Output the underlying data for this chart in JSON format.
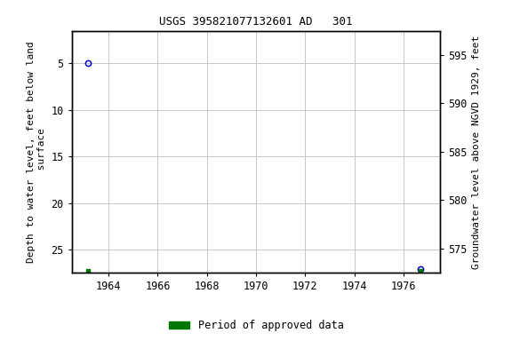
{
  "title": "USGS 395821077132601 AD   301",
  "ylabel_left": "Depth to water level, feet below land\n surface",
  "ylabel_right": "Groundwater level above NGVD 1929, feet",
  "xlim": [
    1962.5,
    1977.5
  ],
  "ylim_left": [
    27.5,
    1.5
  ],
  "ylim_right": [
    572.5,
    597.5
  ],
  "xticks": [
    1964,
    1966,
    1968,
    1970,
    1972,
    1974,
    1976
  ],
  "yticks_left": [
    5,
    10,
    15,
    20,
    25
  ],
  "yticks_right": [
    595,
    590,
    585,
    580,
    575
  ],
  "bg_color": "#ffffff",
  "plot_bg_color": "#ffffff",
  "grid_color": "#c8c8c8",
  "blue_points": [
    {
      "x": 1963.15,
      "y_left": 5.0
    },
    {
      "x": 1976.7,
      "y_left": 27.1
    }
  ],
  "green_points": [
    {
      "x": 1963.15,
      "y_left": 27.3
    },
    {
      "x": 1976.7,
      "y_left": 27.3
    }
  ],
  "blue_color": "#0000cc",
  "green_color": "#007700",
  "legend_label": "Period of approved data",
  "title_fontsize": 9,
  "axis_fontsize": 8,
  "tick_fontsize": 8.5,
  "marker_size": 4.5,
  "green_marker_size": 3.5
}
